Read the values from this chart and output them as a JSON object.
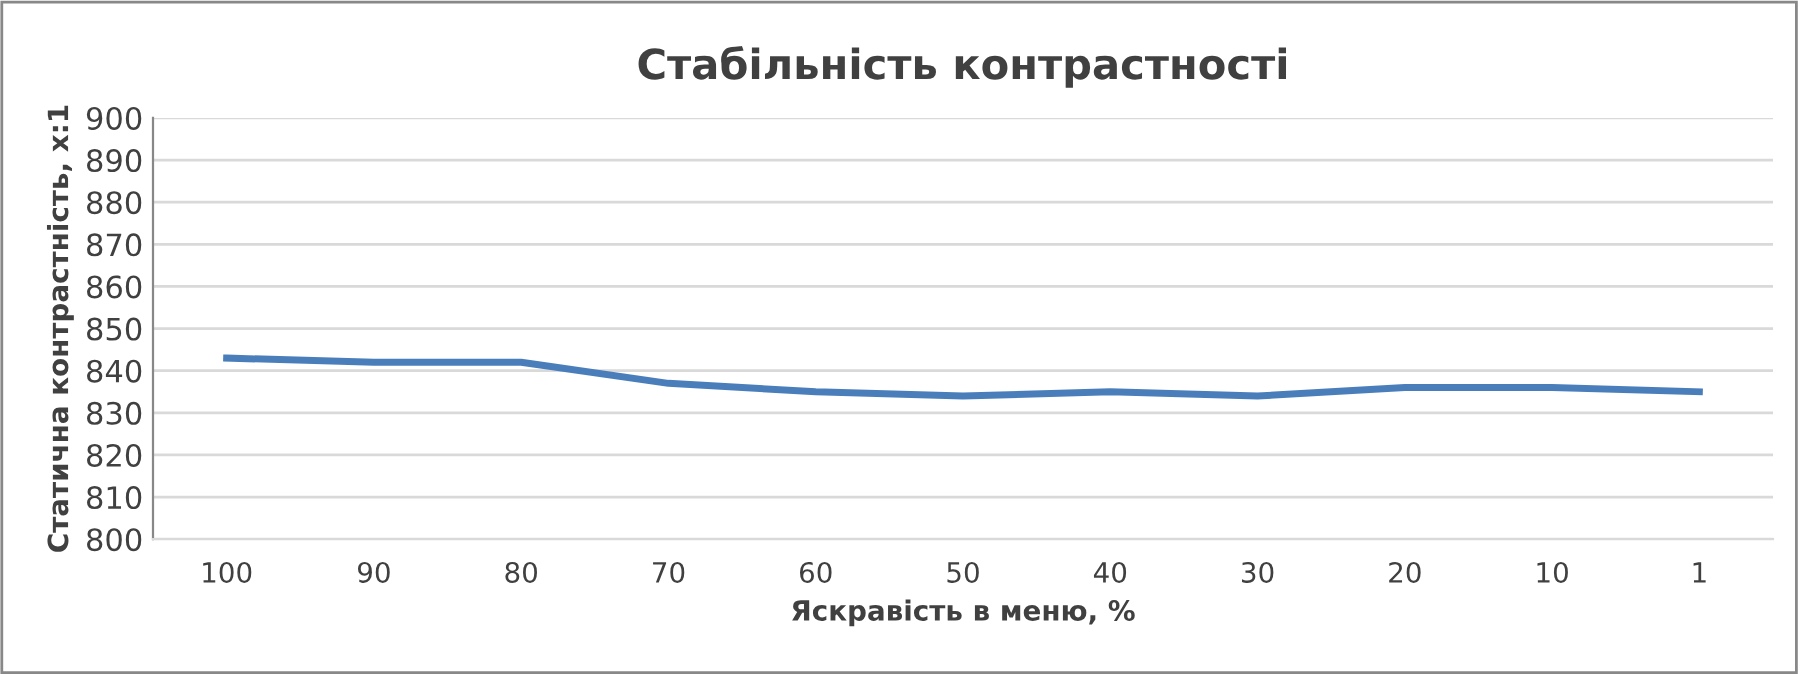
{
  "chart_data": {
    "type": "line",
    "title": "Стабільність контрастності",
    "xlabel": "Яскравість в меню, %",
    "ylabel": "Статична контрастність, x:1",
    "categories": [
      "100",
      "90",
      "80",
      "70",
      "60",
      "50",
      "40",
      "30",
      "20",
      "10",
      "1"
    ],
    "series": [
      {
        "color": "#4a7ebb",
        "values": [
          843,
          842,
          842,
          837,
          835,
          834,
          835,
          834,
          836,
          836,
          835
        ]
      }
    ],
    "ylim": [
      800,
      900
    ],
    "yticks": [
      800,
      810,
      820,
      830,
      840,
      850,
      860,
      870,
      880,
      890,
      900
    ],
    "grid": "y",
    "legend": false,
    "marker": "none",
    "line_style": "solid"
  }
}
